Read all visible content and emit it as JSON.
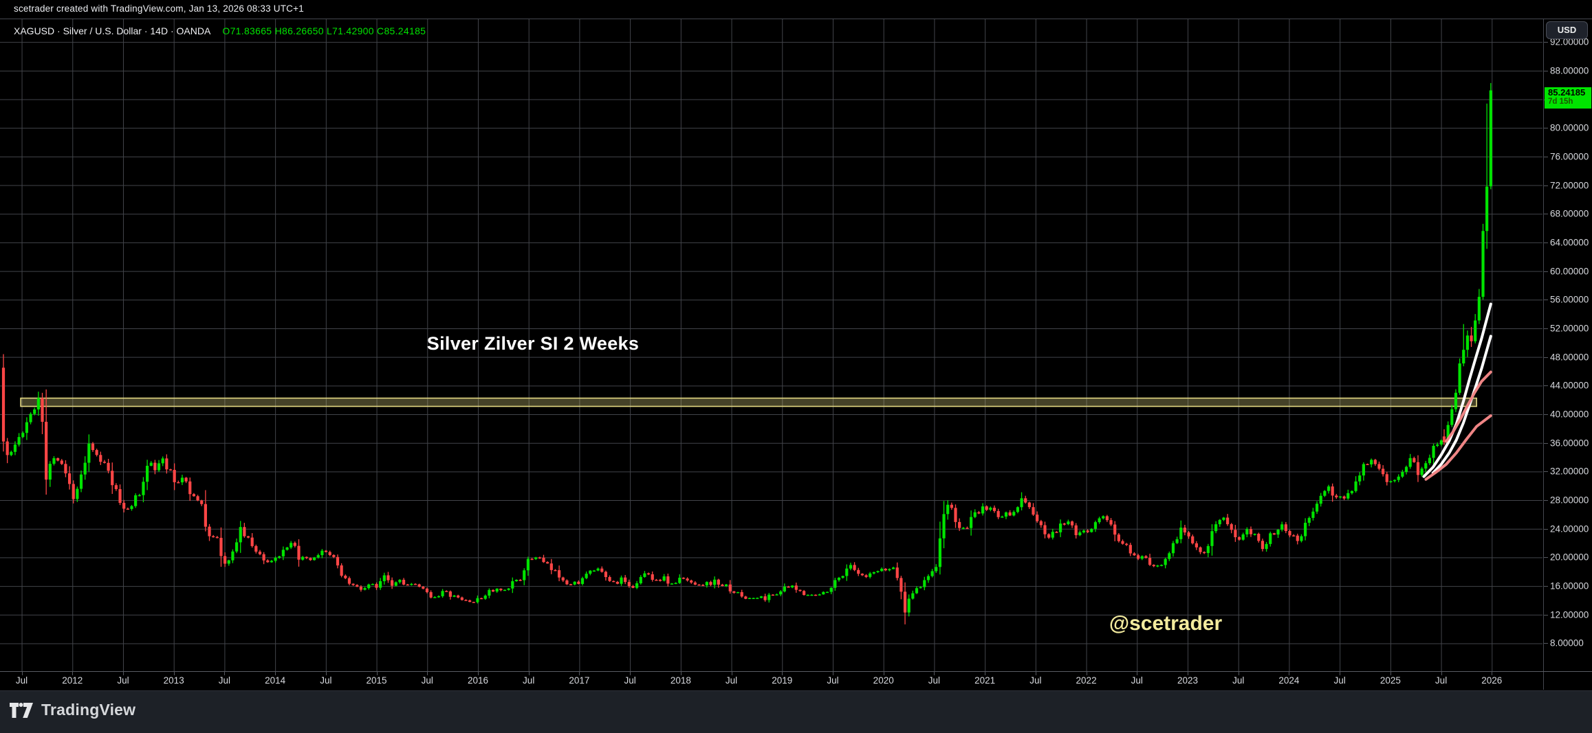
{
  "attribution_bar": {
    "text": "scetrader created with TradingView.com, Jan 13, 2026 08:33 UTC+1"
  },
  "header": {
    "symbol_line": "XAGUSD · Silver / U.S. Dollar · 14D · OANDA",
    "ohlc_line": "O71.83665  H86.26650  L71.42900  C85.24185"
  },
  "price_axis": {
    "currency_button": "USD",
    "tick_min": 8,
    "tick_max": 92,
    "tick_step": 4,
    "decimals": 5,
    "last_price_flag": {
      "price": "85.24185",
      "countdown": "7d 15h"
    }
  },
  "time_axis": {
    "labels": [
      {
        "t": 2011.5,
        "label": "Jul"
      },
      {
        "t": 2012,
        "label": "2012"
      },
      {
        "t": 2012.5,
        "label": "Jul"
      },
      {
        "t": 2013,
        "label": "2013"
      },
      {
        "t": 2013.5,
        "label": "Jul"
      },
      {
        "t": 2014,
        "label": "2014"
      },
      {
        "t": 2014.5,
        "label": "Jul"
      },
      {
        "t": 2015,
        "label": "2015"
      },
      {
        "t": 2015.5,
        "label": "Jul"
      },
      {
        "t": 2016,
        "label": "2016"
      },
      {
        "t": 2016.5,
        "label": "Jul"
      },
      {
        "t": 2017,
        "label": "2017"
      },
      {
        "t": 2017.5,
        "label": "Jul"
      },
      {
        "t": 2018,
        "label": "2018"
      },
      {
        "t": 2018.5,
        "label": "Jul"
      },
      {
        "t": 2019,
        "label": "2019"
      },
      {
        "t": 2019.5,
        "label": "Jul"
      },
      {
        "t": 2020,
        "label": "2020"
      },
      {
        "t": 2020.5,
        "label": "Jul"
      },
      {
        "t": 2021,
        "label": "2021"
      },
      {
        "t": 2021.5,
        "label": "Jul"
      },
      {
        "t": 2022,
        "label": "2022"
      },
      {
        "t": 2022.5,
        "label": "Jul"
      },
      {
        "t": 2023,
        "label": "2023"
      },
      {
        "t": 2023.5,
        "label": "Jul"
      },
      {
        "t": 2024,
        "label": "2024"
      },
      {
        "t": 2024.5,
        "label": "Jul"
      },
      {
        "t": 2025,
        "label": "2025"
      },
      {
        "t": 2025.5,
        "label": "Jul"
      },
      {
        "t": 2026,
        "label": "2026"
      }
    ]
  },
  "annotations": {
    "title": "Silver Zilver SI 2 Weeks",
    "watermark": "@scetrader"
  },
  "footer": {
    "brand": "TradingView"
  },
  "colors": {
    "background": "#000000",
    "up": "#00e400",
    "down": "#ff4646",
    "grid": "#42444a",
    "zone_fill": "rgba(229,218,132,0.30)",
    "zone_border": "#e5da84",
    "ma_white": "#ffffff",
    "ma_pink": "#ef8585",
    "flag_green": "#00e400"
  },
  "chart_data": {
    "type": "candlestick",
    "symbol": "XAGUSD",
    "timeframe_days": 14,
    "title": "Silver Zilver SI 2 Weeks",
    "x_domain": [
      2011.286,
      2026.5
    ],
    "price_domain": [
      4.11,
      95.18
    ],
    "grid": {
      "x_step_years": 0.5,
      "y_step": 4
    },
    "candle_step_years": 0.03833,
    "first_candle": [
      2011.32,
      46.5,
      48.4,
      34.8,
      36.2
    ],
    "anchors": [
      [
        2011.32,
        36.2
      ],
      [
        2011.38,
        34.0
      ],
      [
        2011.46,
        36.5
      ],
      [
        2011.54,
        38.0
      ],
      [
        2011.62,
        41.0
      ],
      [
        2011.67,
        42.6
      ],
      [
        2011.7,
        40.2
      ],
      [
        2011.745,
        30.6
      ],
      [
        2011.8,
        33.8
      ],
      [
        2011.87,
        34.4
      ],
      [
        2011.93,
        31.8
      ],
      [
        2012.0,
        28.4
      ],
      [
        2012.06,
        30.5
      ],
      [
        2012.13,
        34.0
      ],
      [
        2012.18,
        36.8
      ],
      [
        2012.24,
        33.8
      ],
      [
        2012.32,
        32.8
      ],
      [
        2012.4,
        30.0
      ],
      [
        2012.48,
        27.3
      ],
      [
        2012.53,
        26.7
      ],
      [
        2012.6,
        27.8
      ],
      [
        2012.68,
        29.0
      ],
      [
        2012.76,
        34.3
      ],
      [
        2012.83,
        32.3
      ],
      [
        2012.88,
        33.8
      ],
      [
        2012.95,
        32.2
      ],
      [
        2013.02,
        30.2
      ],
      [
        2013.1,
        31.6
      ],
      [
        2013.18,
        28.6
      ],
      [
        2013.27,
        27.4
      ],
      [
        2013.33,
        23.4
      ],
      [
        2013.42,
        22.8
      ],
      [
        2013.5,
        18.9
      ],
      [
        2013.57,
        19.8
      ],
      [
        2013.65,
        24.3
      ],
      [
        2013.7,
        23.0
      ],
      [
        2013.78,
        21.6
      ],
      [
        2013.85,
        20.3
      ],
      [
        2013.93,
        19.3
      ],
      [
        2014.0,
        19.9
      ],
      [
        2014.1,
        20.8
      ],
      [
        2014.17,
        21.9
      ],
      [
        2014.24,
        19.9
      ],
      [
        2014.33,
        19.4
      ],
      [
        2014.42,
        19.9
      ],
      [
        2014.5,
        21.1
      ],
      [
        2014.58,
        19.6
      ],
      [
        2014.67,
        17.4
      ],
      [
        2014.75,
        16.2
      ],
      [
        2014.85,
        15.5
      ],
      [
        2014.93,
        16.3
      ],
      [
        2015.0,
        15.7
      ],
      [
        2015.07,
        17.9
      ],
      [
        2015.15,
        16.3
      ],
      [
        2015.23,
        16.9
      ],
      [
        2015.32,
        16.1
      ],
      [
        2015.42,
        15.9
      ],
      [
        2015.5,
        14.9
      ],
      [
        2015.58,
        14.5
      ],
      [
        2015.65,
        15.2
      ],
      [
        2015.73,
        14.7
      ],
      [
        2015.83,
        14.1
      ],
      [
        2015.95,
        13.8
      ],
      [
        2016.03,
        14.2
      ],
      [
        2016.1,
        15.3
      ],
      [
        2016.2,
        15.4
      ],
      [
        2016.28,
        15.1
      ],
      [
        2016.36,
        16.9
      ],
      [
        2016.44,
        17.3
      ],
      [
        2016.5,
        19.6
      ],
      [
        2016.57,
        20.2
      ],
      [
        2016.65,
        19.2
      ],
      [
        2016.73,
        18.2
      ],
      [
        2016.82,
        17.3
      ],
      [
        2016.92,
        16.1
      ],
      [
        2017.0,
        16.7
      ],
      [
        2017.08,
        17.6
      ],
      [
        2017.16,
        18.4
      ],
      [
        2017.25,
        17.3
      ],
      [
        2017.33,
        16.4
      ],
      [
        2017.42,
        16.9
      ],
      [
        2017.5,
        15.5
      ],
      [
        2017.58,
        16.9
      ],
      [
        2017.66,
        17.8
      ],
      [
        2017.75,
        16.9
      ],
      [
        2017.83,
        17.1
      ],
      [
        2017.92,
        16.1
      ],
      [
        2018.0,
        17.1
      ],
      [
        2018.08,
        16.6
      ],
      [
        2018.17,
        16.4
      ],
      [
        2018.25,
        16.3
      ],
      [
        2018.33,
        16.6
      ],
      [
        2018.42,
        16.1
      ],
      [
        2018.5,
        15.5
      ],
      [
        2018.58,
        14.7
      ],
      [
        2018.67,
        14.2
      ],
      [
        2018.75,
        14.4
      ],
      [
        2018.83,
        14.3
      ],
      [
        2018.92,
        14.9
      ],
      [
        2019.0,
        15.5
      ],
      [
        2019.08,
        15.9
      ],
      [
        2019.17,
        15.2
      ],
      [
        2019.25,
        15.0
      ],
      [
        2019.33,
        14.6
      ],
      [
        2019.42,
        15.1
      ],
      [
        2019.5,
        16.3
      ],
      [
        2019.58,
        17.3
      ],
      [
        2019.67,
        19.2
      ],
      [
        2019.73,
        17.6
      ],
      [
        2019.83,
        17.1
      ],
      [
        2019.92,
        17.9
      ],
      [
        2020.0,
        18.1
      ],
      [
        2020.1,
        18.6
      ],
      [
        2020.16,
        16.5
      ],
      [
        2020.21,
        12.0
      ],
      [
        2020.26,
        15.0
      ],
      [
        2020.35,
        15.6
      ],
      [
        2020.44,
        17.6
      ],
      [
        2020.52,
        19.0
      ],
      [
        2020.57,
        24.2
      ],
      [
        2020.62,
        27.2
      ],
      [
        2020.68,
        26.9
      ],
      [
        2020.74,
        23.6
      ],
      [
        2020.82,
        24.4
      ],
      [
        2020.9,
        25.7
      ],
      [
        2020.98,
        26.8
      ],
      [
        2021.06,
        26.9
      ],
      [
        2021.14,
        25.6
      ],
      [
        2021.23,
        26.1
      ],
      [
        2021.32,
        27.4
      ],
      [
        2021.4,
        28.1
      ],
      [
        2021.48,
        25.9
      ],
      [
        2021.56,
        23.9
      ],
      [
        2021.64,
        22.6
      ],
      [
        2021.73,
        24.1
      ],
      [
        2021.82,
        25.1
      ],
      [
        2021.9,
        23.1
      ],
      [
        2021.98,
        23.4
      ],
      [
        2022.06,
        24.4
      ],
      [
        2022.15,
        25.7
      ],
      [
        2022.23,
        24.9
      ],
      [
        2022.32,
        22.3
      ],
      [
        2022.42,
        21.1
      ],
      [
        2022.5,
        19.3
      ],
      [
        2022.58,
        20.1
      ],
      [
        2022.67,
        18.3
      ],
      [
        2022.76,
        19.6
      ],
      [
        2022.84,
        21.4
      ],
      [
        2022.92,
        23.7
      ],
      [
        2023.0,
        23.4
      ],
      [
        2023.08,
        21.6
      ],
      [
        2023.17,
        20.8
      ],
      [
        2023.26,
        24.1
      ],
      [
        2023.34,
        25.4
      ],
      [
        2023.42,
        23.6
      ],
      [
        2023.5,
        22.6
      ],
      [
        2023.58,
        24.4
      ],
      [
        2023.67,
        23.1
      ],
      [
        2023.74,
        21.6
      ],
      [
        2023.83,
        23.1
      ],
      [
        2023.92,
        24.9
      ],
      [
        2024.0,
        23.6
      ],
      [
        2024.09,
        22.6
      ],
      [
        2024.18,
        24.9
      ],
      [
        2024.27,
        27.4
      ],
      [
        2024.35,
        29.6
      ],
      [
        2024.44,
        29.1
      ],
      [
        2024.52,
        28.1
      ],
      [
        2024.6,
        29.2
      ],
      [
        2024.68,
        31.3
      ],
      [
        2024.75,
        33.7
      ],
      [
        2024.82,
        33.4
      ],
      [
        2024.9,
        31.4
      ],
      [
        2024.98,
        30.1
      ],
      [
        2025.06,
        31.4
      ],
      [
        2025.14,
        32.6
      ],
      [
        2025.21,
        33.9
      ],
      [
        2025.29,
        31.6
      ],
      [
        2025.37,
        33.4
      ],
      [
        2025.45,
        36.4
      ],
      [
        2025.52,
        36.6
      ]
    ],
    "last_candles": [
      [
        2025.5301,
        36.9,
        37.9,
        35.7,
        36.1
      ],
      [
        2025.5684,
        36.1,
        39.0,
        35.9,
        38.5
      ],
      [
        2025.6067,
        38.5,
        41.3,
        38.2,
        40.7
      ],
      [
        2025.6451,
        40.7,
        43.5,
        40.3,
        43.0
      ],
      [
        2025.6834,
        43.0,
        47.8,
        42.7,
        47.1
      ],
      [
        2025.7217,
        47.1,
        52.6,
        46.7,
        49.0
      ],
      [
        2025.7601,
        49.0,
        51.7,
        48.0,
        51.0
      ],
      [
        2025.7984,
        51.0,
        52.2,
        49.4,
        50.2
      ],
      [
        2025.8367,
        50.2,
        54.0,
        49.9,
        53.1
      ],
      [
        2025.875,
        53.1,
        57.5,
        52.6,
        56.4
      ],
      [
        2025.9134,
        56.4,
        66.6,
        56.0,
        65.6
      ],
      [
        2025.9517,
        65.6,
        83.4,
        63.1,
        71.8
      ],
      [
        2025.99,
        71.83665,
        86.2665,
        71.429,
        85.24185
      ]
    ],
    "support_zone": {
      "t_start": 2011.49,
      "t_end": 2025.85,
      "price_top": 42.25,
      "price_bottom": 41.1
    },
    "overlays": [
      {
        "name": "ma-white-fast",
        "color": "#ffffff",
        "width": 4,
        "points": [
          [
            2025.33,
            31.3
          ],
          [
            2025.42,
            32.6
          ],
          [
            2025.5,
            34.3
          ],
          [
            2025.58,
            36.3
          ],
          [
            2025.65,
            38.6
          ],
          [
            2025.72,
            41.8
          ],
          [
            2025.78,
            44.9
          ],
          [
            2025.84,
            47.8
          ],
          [
            2025.9,
            50.6
          ],
          [
            2025.99,
            55.4
          ]
        ]
      },
      {
        "name": "ma-white-slow",
        "color": "#ffffff",
        "width": 4,
        "points": [
          [
            2025.42,
            31.8
          ],
          [
            2025.5,
            33.0
          ],
          [
            2025.58,
            34.6
          ],
          [
            2025.65,
            36.4
          ],
          [
            2025.72,
            38.8
          ],
          [
            2025.78,
            41.3
          ],
          [
            2025.84,
            43.8
          ],
          [
            2025.9,
            46.4
          ],
          [
            2025.99,
            50.9
          ]
        ]
      },
      {
        "name": "ma-pink-fast",
        "color": "#ef8585",
        "width": 4,
        "points": [
          [
            2025.55,
            36.2
          ],
          [
            2025.62,
            37.6
          ],
          [
            2025.69,
            39.3
          ],
          [
            2025.76,
            41.2
          ],
          [
            2025.83,
            43.0
          ],
          [
            2025.9,
            44.6
          ],
          [
            2025.99,
            45.9
          ]
        ]
      },
      {
        "name": "ma-pink-slow",
        "color": "#ef8585",
        "width": 4,
        "points": [
          [
            2025.35,
            30.9
          ],
          [
            2025.45,
            31.9
          ],
          [
            2025.55,
            33.0
          ],
          [
            2025.65,
            34.6
          ],
          [
            2025.75,
            36.5
          ],
          [
            2025.85,
            38.3
          ],
          [
            2025.99,
            39.8
          ]
        ]
      }
    ]
  }
}
